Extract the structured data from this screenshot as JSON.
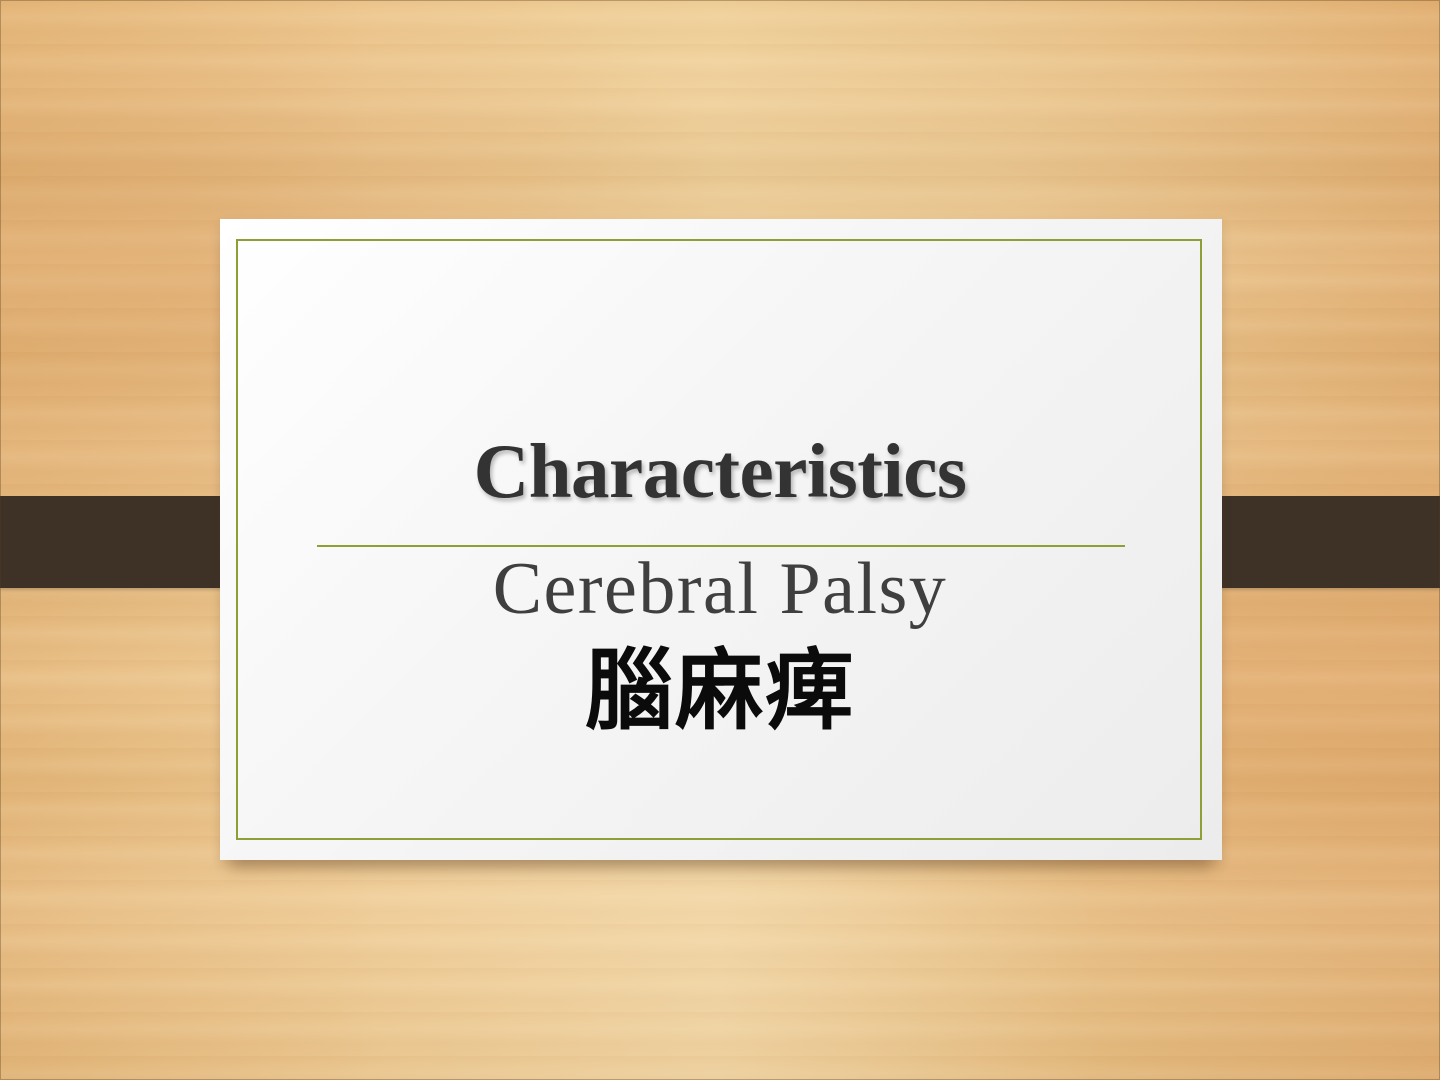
{
  "slide": {
    "title": "Characteristics",
    "subtitle_en": "Cerebral Palsy",
    "subtitle_zh": "腦麻痺",
    "colors": {
      "wood_base": "#efcb93",
      "card": "#ffffff",
      "accent": "#8ea035",
      "strap": "#3e3227",
      "title_text": "#333333"
    }
  }
}
